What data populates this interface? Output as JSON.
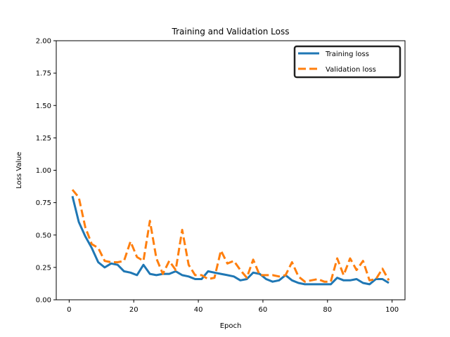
{
  "chart_data": {
    "type": "line",
    "title": "Training and Validation Loss",
    "xlabel": "Epoch",
    "ylabel": "Loss Value",
    "xlim": [
      -4,
      104
    ],
    "ylim": [
      0,
      2
    ],
    "xticks": [
      0,
      20,
      40,
      60,
      80,
      100
    ],
    "xtick_labels": [
      "0",
      "20",
      "40",
      "60",
      "80",
      "100"
    ],
    "yticks": [
      0,
      0.25,
      0.5,
      0.75,
      1.0,
      1.25,
      1.5,
      1.75,
      2.0
    ],
    "ytick_labels": [
      "0.00",
      "0.25",
      "0.50",
      "0.75",
      "1.00",
      "1.25",
      "1.50",
      "1.75",
      "2.00"
    ],
    "grid": false,
    "legend_position": "top-right",
    "x": [
      1,
      3,
      5,
      7,
      9,
      11,
      13,
      15,
      17,
      19,
      21,
      23,
      25,
      27,
      29,
      31,
      33,
      35,
      37,
      39,
      41,
      43,
      45,
      47,
      49,
      51,
      53,
      55,
      57,
      59,
      61,
      63,
      65,
      67,
      69,
      71,
      73,
      75,
      77,
      79,
      81,
      83,
      85,
      87,
      89,
      91,
      93,
      95,
      97,
      99
    ],
    "series": [
      {
        "name": "Training loss",
        "color": "#1f77b4",
        "style": "solid",
        "values": [
          0.8,
          0.6,
          0.49,
          0.4,
          0.29,
          0.25,
          0.28,
          0.27,
          0.22,
          0.21,
          0.19,
          0.27,
          0.2,
          0.19,
          0.2,
          0.2,
          0.22,
          0.19,
          0.18,
          0.16,
          0.16,
          0.22,
          0.21,
          0.2,
          0.19,
          0.18,
          0.15,
          0.16,
          0.21,
          0.2,
          0.16,
          0.14,
          0.15,
          0.19,
          0.15,
          0.13,
          0.12,
          0.12,
          0.12,
          0.12,
          0.12,
          0.17,
          0.15,
          0.15,
          0.16,
          0.13,
          0.12,
          0.16,
          0.16,
          0.13
        ]
      },
      {
        "name": "Validation loss",
        "color": "#ff7f0e",
        "style": "dashed",
        "values": [
          0.85,
          0.79,
          0.56,
          0.43,
          0.4,
          0.3,
          0.29,
          0.29,
          0.3,
          0.45,
          0.33,
          0.3,
          0.61,
          0.32,
          0.2,
          0.3,
          0.23,
          0.54,
          0.27,
          0.19,
          0.19,
          0.16,
          0.17,
          0.38,
          0.28,
          0.3,
          0.23,
          0.17,
          0.31,
          0.19,
          0.19,
          0.19,
          0.18,
          0.19,
          0.29,
          0.18,
          0.14,
          0.15,
          0.16,
          0.14,
          0.14,
          0.32,
          0.19,
          0.32,
          0.23,
          0.3,
          0.15,
          0.16,
          0.24,
          0.15
        ]
      }
    ]
  }
}
